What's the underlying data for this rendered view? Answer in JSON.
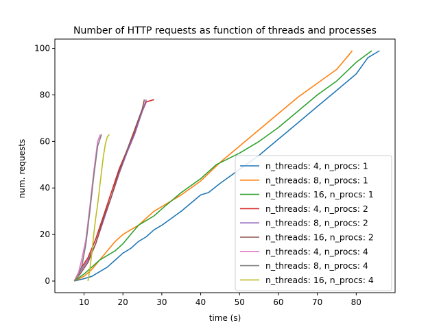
{
  "chart_data": {
    "type": "line",
    "title": "Number of HTTP requests as function of threads and processes",
    "xlabel": "time (s)",
    "ylabel": "num. requests",
    "xlim": [
      2.5,
      90
    ],
    "ylim": [
      -5,
      104
    ],
    "xticks": [
      10,
      20,
      30,
      40,
      50,
      60,
      70,
      80
    ],
    "yticks": [
      0,
      20,
      40,
      60,
      80,
      100
    ],
    "grid": false,
    "legend_position": "lower-right",
    "series": [
      {
        "name": "n_threads: 4, n_procs: 1",
        "color": "#1f77b4",
        "x": [
          7.5,
          10,
          12,
          14,
          15,
          16,
          18,
          20,
          22,
          24,
          26,
          28,
          30,
          35,
          40,
          42,
          45,
          50,
          55,
          60,
          65,
          70,
          75,
          80,
          83,
          86
        ],
        "y": [
          0,
          1,
          2,
          4,
          5,
          6,
          9,
          12,
          14,
          17,
          19,
          22,
          24,
          30,
          37,
          38,
          42,
          48,
          54,
          61,
          68,
          75,
          82,
          89,
          96,
          99
        ]
      },
      {
        "name": "n_threads: 8, n_procs: 1",
        "color": "#ff7f0e",
        "x": [
          7.5,
          10,
          12,
          14,
          16,
          18,
          20,
          22,
          24,
          26,
          28,
          30,
          35,
          40,
          45,
          50,
          55,
          60,
          65,
          70,
          75,
          78,
          79
        ],
        "y": [
          0,
          2,
          5,
          9,
          13,
          17,
          20,
          22,
          24,
          27,
          30,
          32,
          37,
          43,
          51,
          58,
          65,
          72,
          79,
          85,
          91,
          97,
          99
        ]
      },
      {
        "name": "n_threads: 16, n_procs: 1",
        "color": "#2ca02c",
        "x": [
          7.5,
          10,
          12,
          14,
          16,
          18,
          20,
          22,
          24,
          26,
          28,
          30,
          35,
          40,
          44,
          50,
          55,
          60,
          65,
          70,
          75,
          80,
          84
        ],
        "y": [
          0,
          3,
          6,
          9,
          11,
          13,
          16,
          20,
          24,
          26,
          28,
          31,
          38,
          44,
          50,
          55,
          60,
          66,
          73,
          80,
          86,
          94,
          99
        ]
      },
      {
        "name": "n_threads: 4, n_procs: 2",
        "color": "#d62728",
        "x": [
          7.5,
          9,
          11,
          13,
          15,
          17,
          19,
          21,
          23,
          25,
          26,
          28
        ],
        "y": [
          0,
          5,
          10,
          18,
          28,
          38,
          48,
          56,
          64,
          73,
          77,
          78
        ]
      },
      {
        "name": "n_threads: 8, n_procs: 2",
        "color": "#9467bd",
        "x": [
          7.5,
          9,
          11,
          13,
          15,
          17,
          19,
          21,
          23,
          25,
          26
        ],
        "y": [
          0,
          4,
          9,
          16,
          26,
          36,
          46,
          55,
          63,
          73,
          78
        ]
      },
      {
        "name": "n_threads: 16, n_procs: 2",
        "color": "#8c564b",
        "x": [
          7.5,
          9,
          11,
          13,
          15,
          17,
          19,
          21,
          23,
          25,
          25.5
        ],
        "y": [
          0,
          3,
          8,
          16,
          27,
          36,
          47,
          56,
          65,
          74,
          78
        ]
      },
      {
        "name": "n_threads: 4, n_procs: 4",
        "color": "#e377c2",
        "x": [
          7.5,
          8.5,
          9.5,
          10.5,
          11.5,
          12.5,
          13.5,
          14.2
        ],
        "y": [
          0,
          3,
          10,
          18,
          32,
          47,
          60,
          63
        ]
      },
      {
        "name": "n_threads: 8, n_procs: 4",
        "color": "#7f7f7f",
        "x": [
          7.5,
          8.5,
          9.5,
          10.5,
          11.5,
          12.5,
          13.5,
          14.5
        ],
        "y": [
          0,
          2,
          7,
          16,
          30,
          45,
          58,
          63
        ]
      },
      {
        "name": "n_threads: 16, n_procs: 4",
        "color": "#bcbd22",
        "x": [
          11,
          11.5,
          12,
          12.5,
          13,
          13.5,
          14,
          14.5,
          15,
          15.5,
          16,
          16.5
        ],
        "y": [
          0,
          5,
          12,
          20,
          27,
          33,
          40,
          47,
          54,
          59,
          62,
          63
        ]
      }
    ]
  }
}
